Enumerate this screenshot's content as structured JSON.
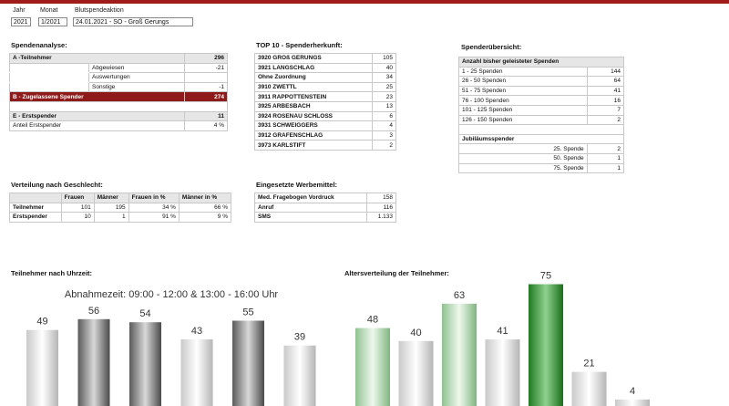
{
  "header": {
    "year_label": "Jahr",
    "month_label": "Monat",
    "event_label": "Blutspendeaktion",
    "year_value": "2021",
    "month_value": "1/2021",
    "event_value": "24.01.2021 - SO - Groß Gerungs"
  },
  "analysis": {
    "title": "Spendenanalyse:",
    "a_label": "A -Teilnehmer",
    "a_value": "296",
    "sub": [
      {
        "label": "Abgewiesen",
        "value": "-21"
      },
      {
        "label": "Auswertungen",
        "value": ""
      },
      {
        "label": "Sonstige",
        "value": "-1"
      }
    ],
    "b_label": "B - Zugelassene Spender",
    "b_value": "274",
    "e_label": "E - Erstspender",
    "e_value": "11",
    "share_label": "Anteil Erstspender",
    "share_value": "4 %"
  },
  "top10": {
    "title": "TOP 10 - Spenderherkunft:",
    "rows": [
      {
        "name": "3920 GROß GERUNGS",
        "value": "105"
      },
      {
        "name": "3921 LANGSCHLAG",
        "value": "40"
      },
      {
        "name": "Ohne Zuordnung",
        "value": "34"
      },
      {
        "name": "3910 ZWETTL",
        "value": "25"
      },
      {
        "name": "3911 RAPPOTTENSTEIN",
        "value": "23"
      },
      {
        "name": "3925 ARBESBACH",
        "value": "13"
      },
      {
        "name": "3924 ROSENAU SCHLOSS",
        "value": "6"
      },
      {
        "name": "3931 SCHWEIGGERS",
        "value": "4"
      },
      {
        "name": "3912 GRAFENSCHLAG",
        "value": "3"
      },
      {
        "name": "3973 KARLSTIFT",
        "value": "2"
      }
    ]
  },
  "overview": {
    "title": "Spenderübersicht:",
    "count_header": "Anzahl bisher geleisteter Spenden",
    "count_rows": [
      {
        "label": "1 - 25 Spenden",
        "value": "144"
      },
      {
        "label": "26 - 50 Spenden",
        "value": "64"
      },
      {
        "label": "51 - 75 Spenden",
        "value": "41"
      },
      {
        "label": "76 - 100 Spenden",
        "value": "16"
      },
      {
        "label": "101 - 125 Spenden",
        "value": "7"
      },
      {
        "label": "126 - 150 Spenden",
        "value": "2"
      }
    ],
    "jubilee_header": "Jubiläumsspender",
    "jubilee_rows": [
      {
        "label": "25. Spende",
        "value": "2"
      },
      {
        "label": "50. Spende",
        "value": "1"
      },
      {
        "label": "75. Spende",
        "value": "1"
      }
    ]
  },
  "gender": {
    "title": "Verteilung nach Geschlecht:",
    "columns": [
      "",
      "Frauen",
      "Männer",
      "Frauen in %",
      "Männer in %"
    ],
    "rows": [
      {
        "label": "Teilnehmer",
        "f": "101",
        "m": "195",
        "fp": "34 %",
        "mp": "66 %"
      },
      {
        "label": "Erstspender",
        "f": "10",
        "m": "1",
        "fp": "91 %",
        "mp": "9 %"
      }
    ]
  },
  "ads": {
    "title": "Eingesetzte Werbemittel:",
    "rows": [
      {
        "label": "Med. Fragebogen Vordruck",
        "value": "158"
      },
      {
        "label": "Anruf",
        "value": "116"
      },
      {
        "label": "SMS",
        "value": "1.133"
      }
    ]
  },
  "chart_data": [
    {
      "type": "bar",
      "title": "Teilnehmer nach Uhrzeit:",
      "annotation": "Abnahmezeit: 09:00 - 12:00 & 13:00 - 16:00 Uhr",
      "values": [
        49,
        56,
        54,
        43,
        55,
        39
      ],
      "ylim": [
        0,
        80
      ]
    },
    {
      "type": "bar",
      "title": "Altersverteilung der Teilnehmer:",
      "values": [
        48,
        40,
        63,
        41,
        75,
        21,
        4
      ],
      "ylim": [
        0,
        80
      ]
    }
  ]
}
